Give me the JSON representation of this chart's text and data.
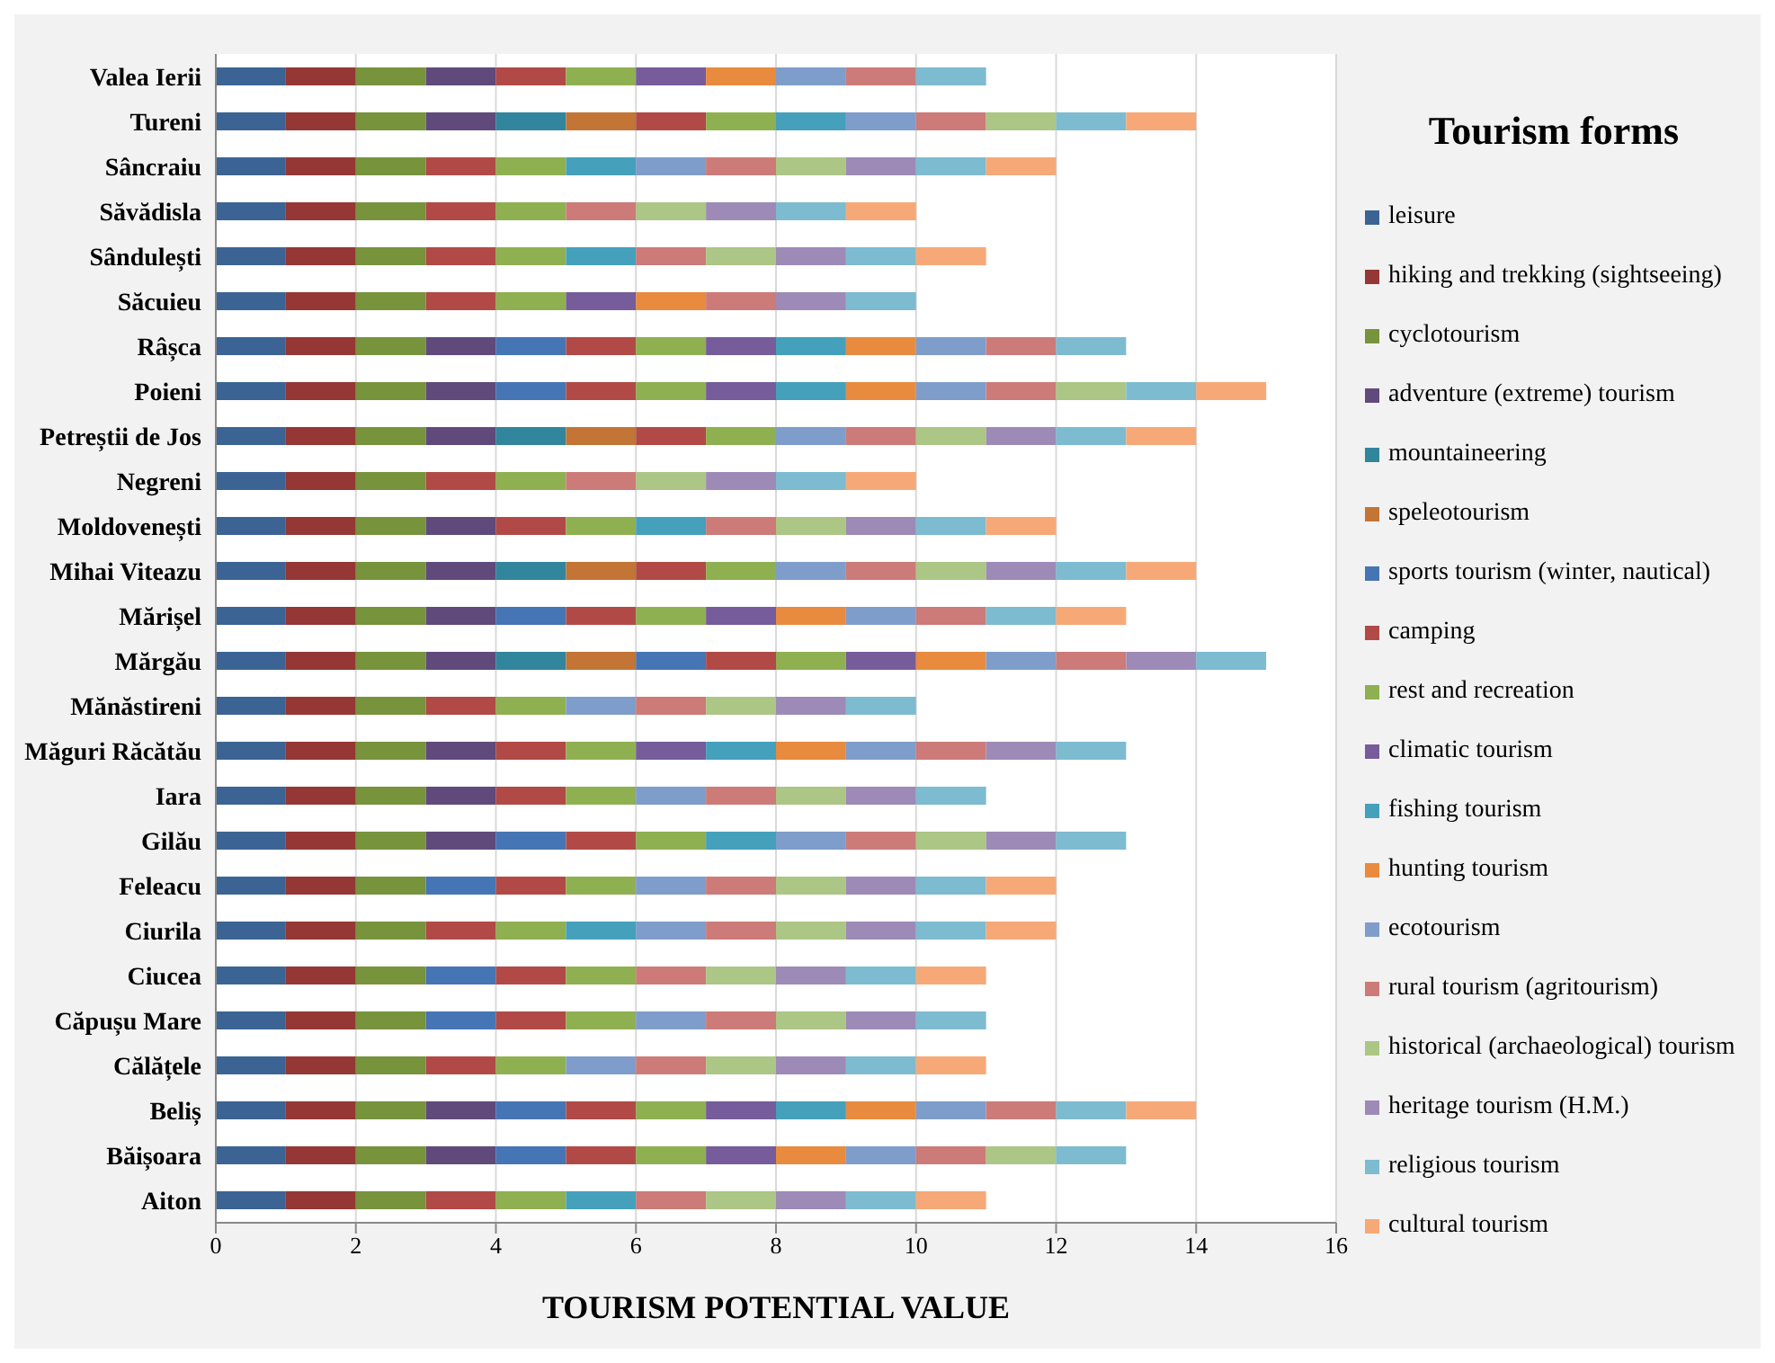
{
  "chart_data": {
    "type": "bar",
    "orientation": "horizontal",
    "stacked": true,
    "xlabel": "TOURISM POTENTIAL VALUE",
    "legend_title": "Tourism forms",
    "legend": "right",
    "grid": "x",
    "xlim": [
      0,
      16
    ],
    "xticks": [
      0,
      2,
      4,
      6,
      8,
      10,
      12,
      14,
      16
    ],
    "categories": [
      "Valea Ierii",
      "Tureni",
      "Sâncraiu",
      "Săvădisla",
      "Sândulești",
      "Săcuieu",
      "Râșca",
      "Poieni",
      "Petreștii de Jos",
      "Negreni",
      "Moldovenești",
      "Mihai Viteazu",
      "Mărișel",
      "Mărgău",
      "Mănăstireni",
      "Măguri Răcătău",
      "Iara",
      "Gilău",
      "Feleacu",
      "Ciurila",
      "Ciucea",
      "Căpușu Mare",
      "Călățele",
      "Beliș",
      "Băișoara",
      "Aiton"
    ],
    "series": [
      {
        "name": "leisure",
        "color": "#3b6495",
        "values": [
          1,
          1,
          1,
          1,
          1,
          1,
          1,
          1,
          1,
          1,
          1,
          1,
          1,
          1,
          1,
          1,
          1,
          1,
          1,
          1,
          1,
          1,
          1,
          1,
          1,
          1
        ]
      },
      {
        "name": "hiking and trekking (sightseeing)",
        "color": "#953735",
        "values": [
          1,
          1,
          1,
          1,
          1,
          1,
          1,
          1,
          1,
          1,
          1,
          1,
          1,
          1,
          1,
          1,
          1,
          1,
          1,
          1,
          1,
          1,
          1,
          1,
          1,
          1
        ]
      },
      {
        "name": "cyclotourism",
        "color": "#77933c",
        "values": [
          1,
          1,
          1,
          1,
          1,
          1,
          1,
          1,
          1,
          1,
          1,
          1,
          1,
          1,
          1,
          1,
          1,
          1,
          1,
          1,
          1,
          1,
          1,
          1,
          1,
          1
        ]
      },
      {
        "name": "adventure (extreme) tourism",
        "color": "#604a7b",
        "values": [
          1,
          1,
          null,
          null,
          null,
          null,
          1,
          1,
          1,
          null,
          1,
          1,
          1,
          1,
          null,
          1,
          1,
          1,
          null,
          null,
          null,
          null,
          null,
          1,
          1,
          null
        ]
      },
      {
        "name": "mountaineering",
        "color": "#31859c",
        "values": [
          null,
          1,
          null,
          null,
          null,
          null,
          null,
          null,
          1,
          null,
          null,
          1,
          null,
          1,
          null,
          null,
          null,
          null,
          null,
          null,
          null,
          null,
          null,
          null,
          null,
          null
        ]
      },
      {
        "name": "speleotourism",
        "color": "#c27535",
        "values": [
          null,
          1,
          null,
          null,
          null,
          null,
          null,
          null,
          1,
          null,
          null,
          1,
          null,
          1,
          null,
          null,
          null,
          null,
          null,
          null,
          null,
          null,
          null,
          null,
          null,
          null
        ]
      },
      {
        "name": "sports tourism (winter, nautical)",
        "color": "#4675b5",
        "values": [
          null,
          null,
          null,
          null,
          null,
          null,
          1,
          1,
          null,
          null,
          null,
          null,
          1,
          1,
          null,
          null,
          null,
          1,
          1,
          null,
          1,
          1,
          null,
          1,
          1,
          null
        ]
      },
      {
        "name": "camping",
        "color": "#b14a47",
        "values": [
          1,
          1,
          1,
          1,
          1,
          1,
          1,
          1,
          1,
          1,
          1,
          1,
          1,
          1,
          1,
          1,
          1,
          1,
          1,
          1,
          1,
          1,
          1,
          1,
          1,
          1
        ]
      },
      {
        "name": "rest and recreation",
        "color": "#8fb051",
        "values": [
          1,
          1,
          1,
          1,
          1,
          1,
          1,
          1,
          1,
          1,
          1,
          1,
          1,
          1,
          1,
          1,
          1,
          1,
          1,
          1,
          1,
          1,
          1,
          1,
          1,
          1
        ]
      },
      {
        "name": "climatic tourism",
        "color": "#765c9b",
        "values": [
          1,
          null,
          null,
          null,
          null,
          1,
          1,
          1,
          null,
          null,
          null,
          null,
          1,
          1,
          null,
          1,
          null,
          null,
          null,
          null,
          null,
          null,
          null,
          1,
          1,
          null
        ]
      },
      {
        "name": "fishing tourism",
        "color": "#45a0bb",
        "values": [
          null,
          1,
          1,
          null,
          1,
          null,
          1,
          1,
          null,
          null,
          1,
          null,
          null,
          null,
          null,
          1,
          null,
          1,
          null,
          1,
          null,
          null,
          null,
          1,
          null,
          1
        ]
      },
      {
        "name": "hunting tourism",
        "color": "#e88b3e",
        "values": [
          1,
          null,
          null,
          null,
          null,
          1,
          1,
          1,
          null,
          null,
          null,
          null,
          1,
          1,
          null,
          1,
          null,
          null,
          null,
          null,
          null,
          null,
          null,
          1,
          1,
          null
        ]
      },
      {
        "name": "ecotourism",
        "color": "#7e9dcb",
        "values": [
          1,
          1,
          1,
          null,
          null,
          null,
          1,
          1,
          1,
          null,
          null,
          1,
          1,
          1,
          1,
          1,
          1,
          1,
          1,
          1,
          null,
          1,
          1,
          1,
          1,
          null
        ]
      },
      {
        "name": "rural tourism (agritourism)",
        "color": "#cc7b79",
        "values": [
          1,
          1,
          1,
          1,
          1,
          1,
          1,
          1,
          1,
          1,
          1,
          1,
          1,
          1,
          1,
          1,
          1,
          1,
          1,
          1,
          1,
          1,
          1,
          1,
          1,
          1
        ]
      },
      {
        "name": "historical (archaeological) tourism",
        "color": "#abc685",
        "values": [
          null,
          1,
          1,
          1,
          1,
          null,
          null,
          1,
          1,
          1,
          1,
          1,
          null,
          null,
          1,
          null,
          1,
          1,
          1,
          1,
          1,
          1,
          1,
          null,
          1,
          1
        ]
      },
      {
        "name": "heritage tourism (H.M.)",
        "color": "#9d8ab7",
        "values": [
          null,
          null,
          1,
          1,
          1,
          1,
          null,
          null,
          1,
          1,
          1,
          1,
          null,
          1,
          1,
          1,
          1,
          1,
          1,
          1,
          1,
          1,
          1,
          null,
          null,
          1
        ]
      },
      {
        "name": "religious tourism",
        "color": "#7dbbd0",
        "values": [
          1,
          1,
          1,
          1,
          1,
          1,
          1,
          1,
          1,
          1,
          1,
          1,
          1,
          1,
          1,
          1,
          1,
          1,
          1,
          1,
          1,
          1,
          1,
          1,
          1,
          1
        ]
      },
      {
        "name": "cultural tourism",
        "color": "#f6a977",
        "values": [
          null,
          1,
          1,
          1,
          1,
          null,
          null,
          1,
          1,
          1,
          1,
          1,
          1,
          null,
          null,
          null,
          null,
          null,
          1,
          1,
          1,
          null,
          1,
          1,
          null,
          1
        ]
      }
    ]
  }
}
